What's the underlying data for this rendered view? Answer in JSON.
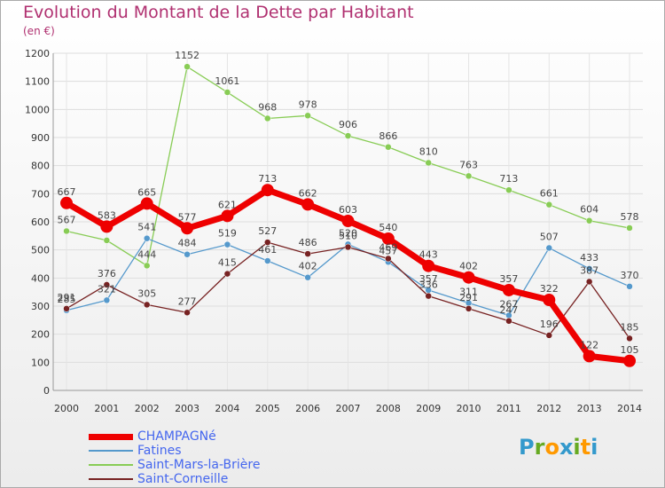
{
  "title": "Evolution du Montant de la Dette par Habitant",
  "subtitle": "(en €)",
  "logo": {
    "text": "Proxiti",
    "letters": [
      "P",
      "r",
      "o",
      "x",
      "i",
      "t",
      "i"
    ],
    "colors": [
      "#3399cc",
      "#66aa22",
      "#ff9900",
      "#3399cc",
      "#66aa22",
      "#ff9900",
      "#3399cc"
    ]
  },
  "chart_data": {
    "type": "line",
    "title": "Evolution du Montant de la Dette par Habitant",
    "subtitle": "(en €)",
    "x": [
      "2000",
      "2001",
      "2002",
      "2003",
      "2004",
      "2005",
      "2006",
      "2007",
      "2008",
      "2009",
      "2010",
      "2011",
      "2012",
      "2013",
      "2014"
    ],
    "ylim": [
      0,
      1200
    ],
    "yticks": [
      0,
      100,
      200,
      300,
      400,
      500,
      600,
      700,
      800,
      900,
      1000,
      1100,
      1200
    ],
    "grid": true,
    "legend_position": "bottom-left",
    "series": [
      {
        "name": "CHAMPAGNé",
        "color": "#ee0000",
        "width": 7,
        "marker": 7,
        "values": [
          667,
          583,
          665,
          577,
          621,
          713,
          662,
          603,
          540,
          443,
          402,
          357,
          322,
          122,
          105
        ],
        "labels": [
          "667",
          "583",
          "665",
          "577",
          "621",
          "713",
          "662",
          "603",
          "540",
          "443",
          "402",
          "357",
          "322",
          "122",
          "105"
        ]
      },
      {
        "name": "Fatines",
        "color": "#5599cc",
        "width": 1.3,
        "marker": 3.5,
        "values": [
          285,
          321,
          541,
          484,
          519,
          461,
          402,
          520,
          457,
          357,
          311,
          267,
          507,
          433,
          370
        ],
        "labels": [
          "285",
          "321",
          "541",
          "484",
          "519",
          "461",
          "402",
          "520",
          "457",
          "357",
          "311",
          "267",
          "507",
          "433",
          "370"
        ]
      },
      {
        "name": "Saint-Mars-la-Brière",
        "color": "#88cc55",
        "width": 1.3,
        "marker": 3.5,
        "values": [
          567,
          534,
          444,
          1152,
          1061,
          968,
          978,
          906,
          866,
          810,
          763,
          713,
          661,
          604,
          578
        ],
        "labels": [
          "567",
          "",
          "444",
          "1152",
          "1061",
          "968",
          "978",
          "906",
          "866",
          "810",
          "763",
          "713",
          "661",
          "604",
          "578"
        ]
      },
      {
        "name": "Saint-Corneille",
        "color": "#772222",
        "width": 1.3,
        "marker": 3.5,
        "values": [
          291,
          376,
          305,
          277,
          415,
          527,
          486,
          510,
          469,
          336,
          291,
          247,
          196,
          387,
          185
        ],
        "labels": [
          "291",
          "376",
          "305",
          "277",
          "415",
          "527",
          "486",
          "510",
          "469",
          "336",
          "291",
          "247",
          "196",
          "387",
          "185"
        ]
      }
    ]
  }
}
